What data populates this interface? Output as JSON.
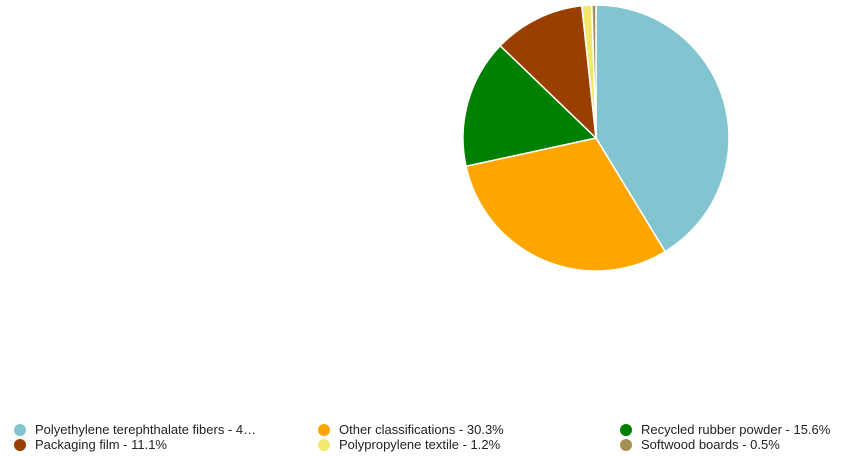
{
  "chart_data": {
    "type": "pie",
    "title": "",
    "start_angle_deg": 0,
    "direction": "clockwise",
    "slices": [
      {
        "label": "Polyethylene terephthalate fibers",
        "value": 41.3,
        "color": "#82c4cf",
        "legend_text": "Polyethylene terephthalate fibers - 4…"
      },
      {
        "label": "Other classifications",
        "value": 30.3,
        "color": "#ffa500",
        "legend_text": "Other classifications - 30.3%"
      },
      {
        "label": "Recycled rubber powder",
        "value": 15.6,
        "color": "#008000",
        "legend_text": "Recycled rubber powder - 15.6%"
      },
      {
        "label": "Packaging film",
        "value": 11.1,
        "color": "#994000",
        "legend_text": "Packaging film - 11.1%"
      },
      {
        "label": "Polypropylene textile",
        "value": 1.2,
        "color": "#f2e86d",
        "legend_text": "Polypropylene textile - 1.2%"
      },
      {
        "label": "Softwood boards",
        "value": 0.5,
        "color": "#a59055",
        "legend_text": "Softwood boards - 0.5%"
      }
    ],
    "legend_placement": "bottom"
  }
}
